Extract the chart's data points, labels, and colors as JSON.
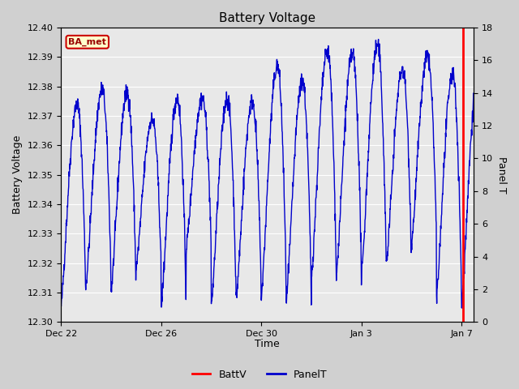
{
  "title": "Battery Voltage",
  "xlabel": "Time",
  "ylabel_left": "Battery Voltage",
  "ylabel_right": "Panel T",
  "ylim_left": [
    12.3,
    12.4
  ],
  "ylim_right": [
    0,
    18
  ],
  "yticks_left": [
    12.3,
    12.31,
    12.32,
    12.33,
    12.34,
    12.35,
    12.36,
    12.37,
    12.38,
    12.39,
    12.4
  ],
  "yticks_right": [
    0,
    2,
    4,
    6,
    8,
    10,
    12,
    14,
    16,
    18
  ],
  "xtick_labels": [
    "Dec 22",
    "Dec 26",
    "Dec 30",
    "Jan 3",
    "Jan 7"
  ],
  "xtick_pos": [
    0,
    4,
    8,
    12,
    16
  ],
  "xlim": [
    0,
    16.5
  ],
  "fig_bg_color": "#d0d0d0",
  "plot_bg_color": "#e8e8e8",
  "line_color_batt": "#ff0000",
  "line_color_panel": "#0000cc",
  "legend_batt": "BattV",
  "legend_panel": "PanelT",
  "ba_met_text": "BA_met",
  "ba_met_bg": "#ffffcc",
  "ba_met_border": "#cc0000",
  "ba_met_text_color": "#990000",
  "red_vline_x": 16.05,
  "seed": 42,
  "n_points": 1600
}
